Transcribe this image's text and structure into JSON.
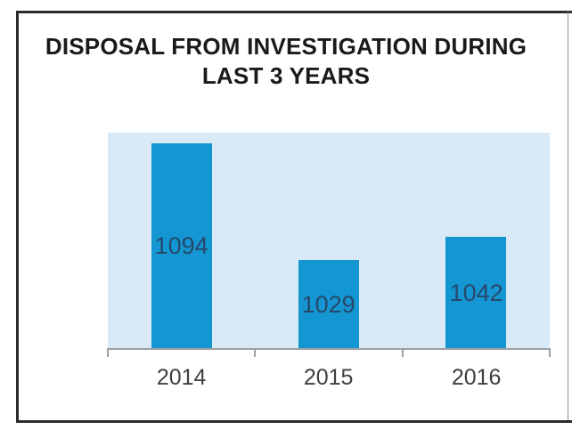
{
  "chart_data": {
    "type": "bar",
    "title": "DISPOSAL FROM INVESTIGATION DURING LAST 3 YEARS",
    "title_lines": [
      "DISPOSAL FROM INVESTIGATION DURING",
      "LAST 3 YEARS"
    ],
    "categories": [
      "2014",
      "2015",
      "2016"
    ],
    "values": [
      1094,
      1029,
      1042
    ],
    "data_labels": [
      "1094",
      "1029",
      "1042"
    ],
    "data_label_position": "center",
    "xlabel": "",
    "ylabel": "",
    "ylim": [
      980,
      1100
    ],
    "grid": false,
    "legend": false
  },
  "colors": {
    "bar_fill": "#1496d2",
    "plot_background": "#d9eaf6",
    "page_background": "#ffffff",
    "title_text": "#1a1a1a",
    "axis_line": "#9aa0a4",
    "axis_tick_label_text": "#3f3f3f",
    "data_label_text": "#26496b",
    "outer_border": "#2b2b2b",
    "right_frame_edge": "#8f8f8f"
  }
}
